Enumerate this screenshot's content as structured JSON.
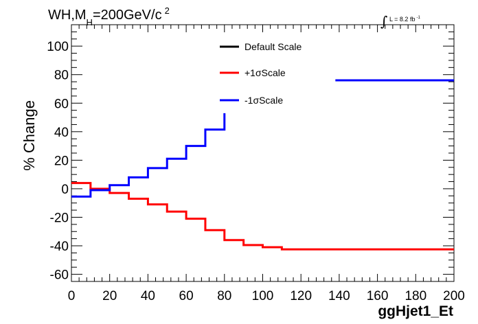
{
  "chart_data": {
    "type": "line",
    "title": {
      "main": "WH,M",
      "sub_h": "H",
      "main_rest": "=200GeV/c",
      "sup": "2"
    },
    "luminosity": {
      "symbol": "∫",
      "text": "L = 8.2 fb",
      "sup": "-1"
    },
    "xlabel": "ggHjet1_Et",
    "ylabel": "% Change",
    "xlim": [
      0,
      200
    ],
    "ylim": [
      -65,
      115
    ],
    "x_ticks": [
      0,
      20,
      40,
      60,
      80,
      100,
      120,
      140,
      160,
      180,
      200
    ],
    "y_ticks": [
      -60,
      -40,
      -20,
      0,
      20,
      40,
      60,
      80,
      100
    ],
    "legend_position": "top-center",
    "series": [
      {
        "name": "Default Scale",
        "color": "#000000",
        "segments": []
      },
      {
        "name": "+1σScale",
        "color": "#ff0000",
        "segments": [
          {
            "bins": [
              [
                0,
                10,
                4
              ],
              [
                10,
                20,
                0
              ],
              [
                20,
                30,
                -3
              ],
              [
                30,
                40,
                -7
              ],
              [
                40,
                50,
                -11
              ],
              [
                50,
                60,
                -16
              ],
              [
                60,
                70,
                -21
              ],
              [
                70,
                80,
                -29
              ],
              [
                80,
                90,
                -36
              ],
              [
                90,
                100,
                -39.5
              ],
              [
                100,
                110,
                -41
              ],
              [
                110,
                200,
                -42.5
              ]
            ]
          }
        ]
      },
      {
        "name": "-1σScale",
        "color": "#0000ff",
        "segments": [
          {
            "bins": [
              [
                0,
                10,
                -5.5
              ],
              [
                10,
                20,
                -1
              ],
              [
                20,
                30,
                2.5
              ],
              [
                30,
                40,
                8
              ],
              [
                40,
                50,
                14.5
              ],
              [
                50,
                60,
                21
              ],
              [
                60,
                70,
                30
              ],
              [
                70,
                80,
                41.5
              ]
            ],
            "end_y": 53
          },
          {
            "bins": [
              [
                138,
                200,
                76
              ]
            ]
          }
        ]
      }
    ]
  }
}
